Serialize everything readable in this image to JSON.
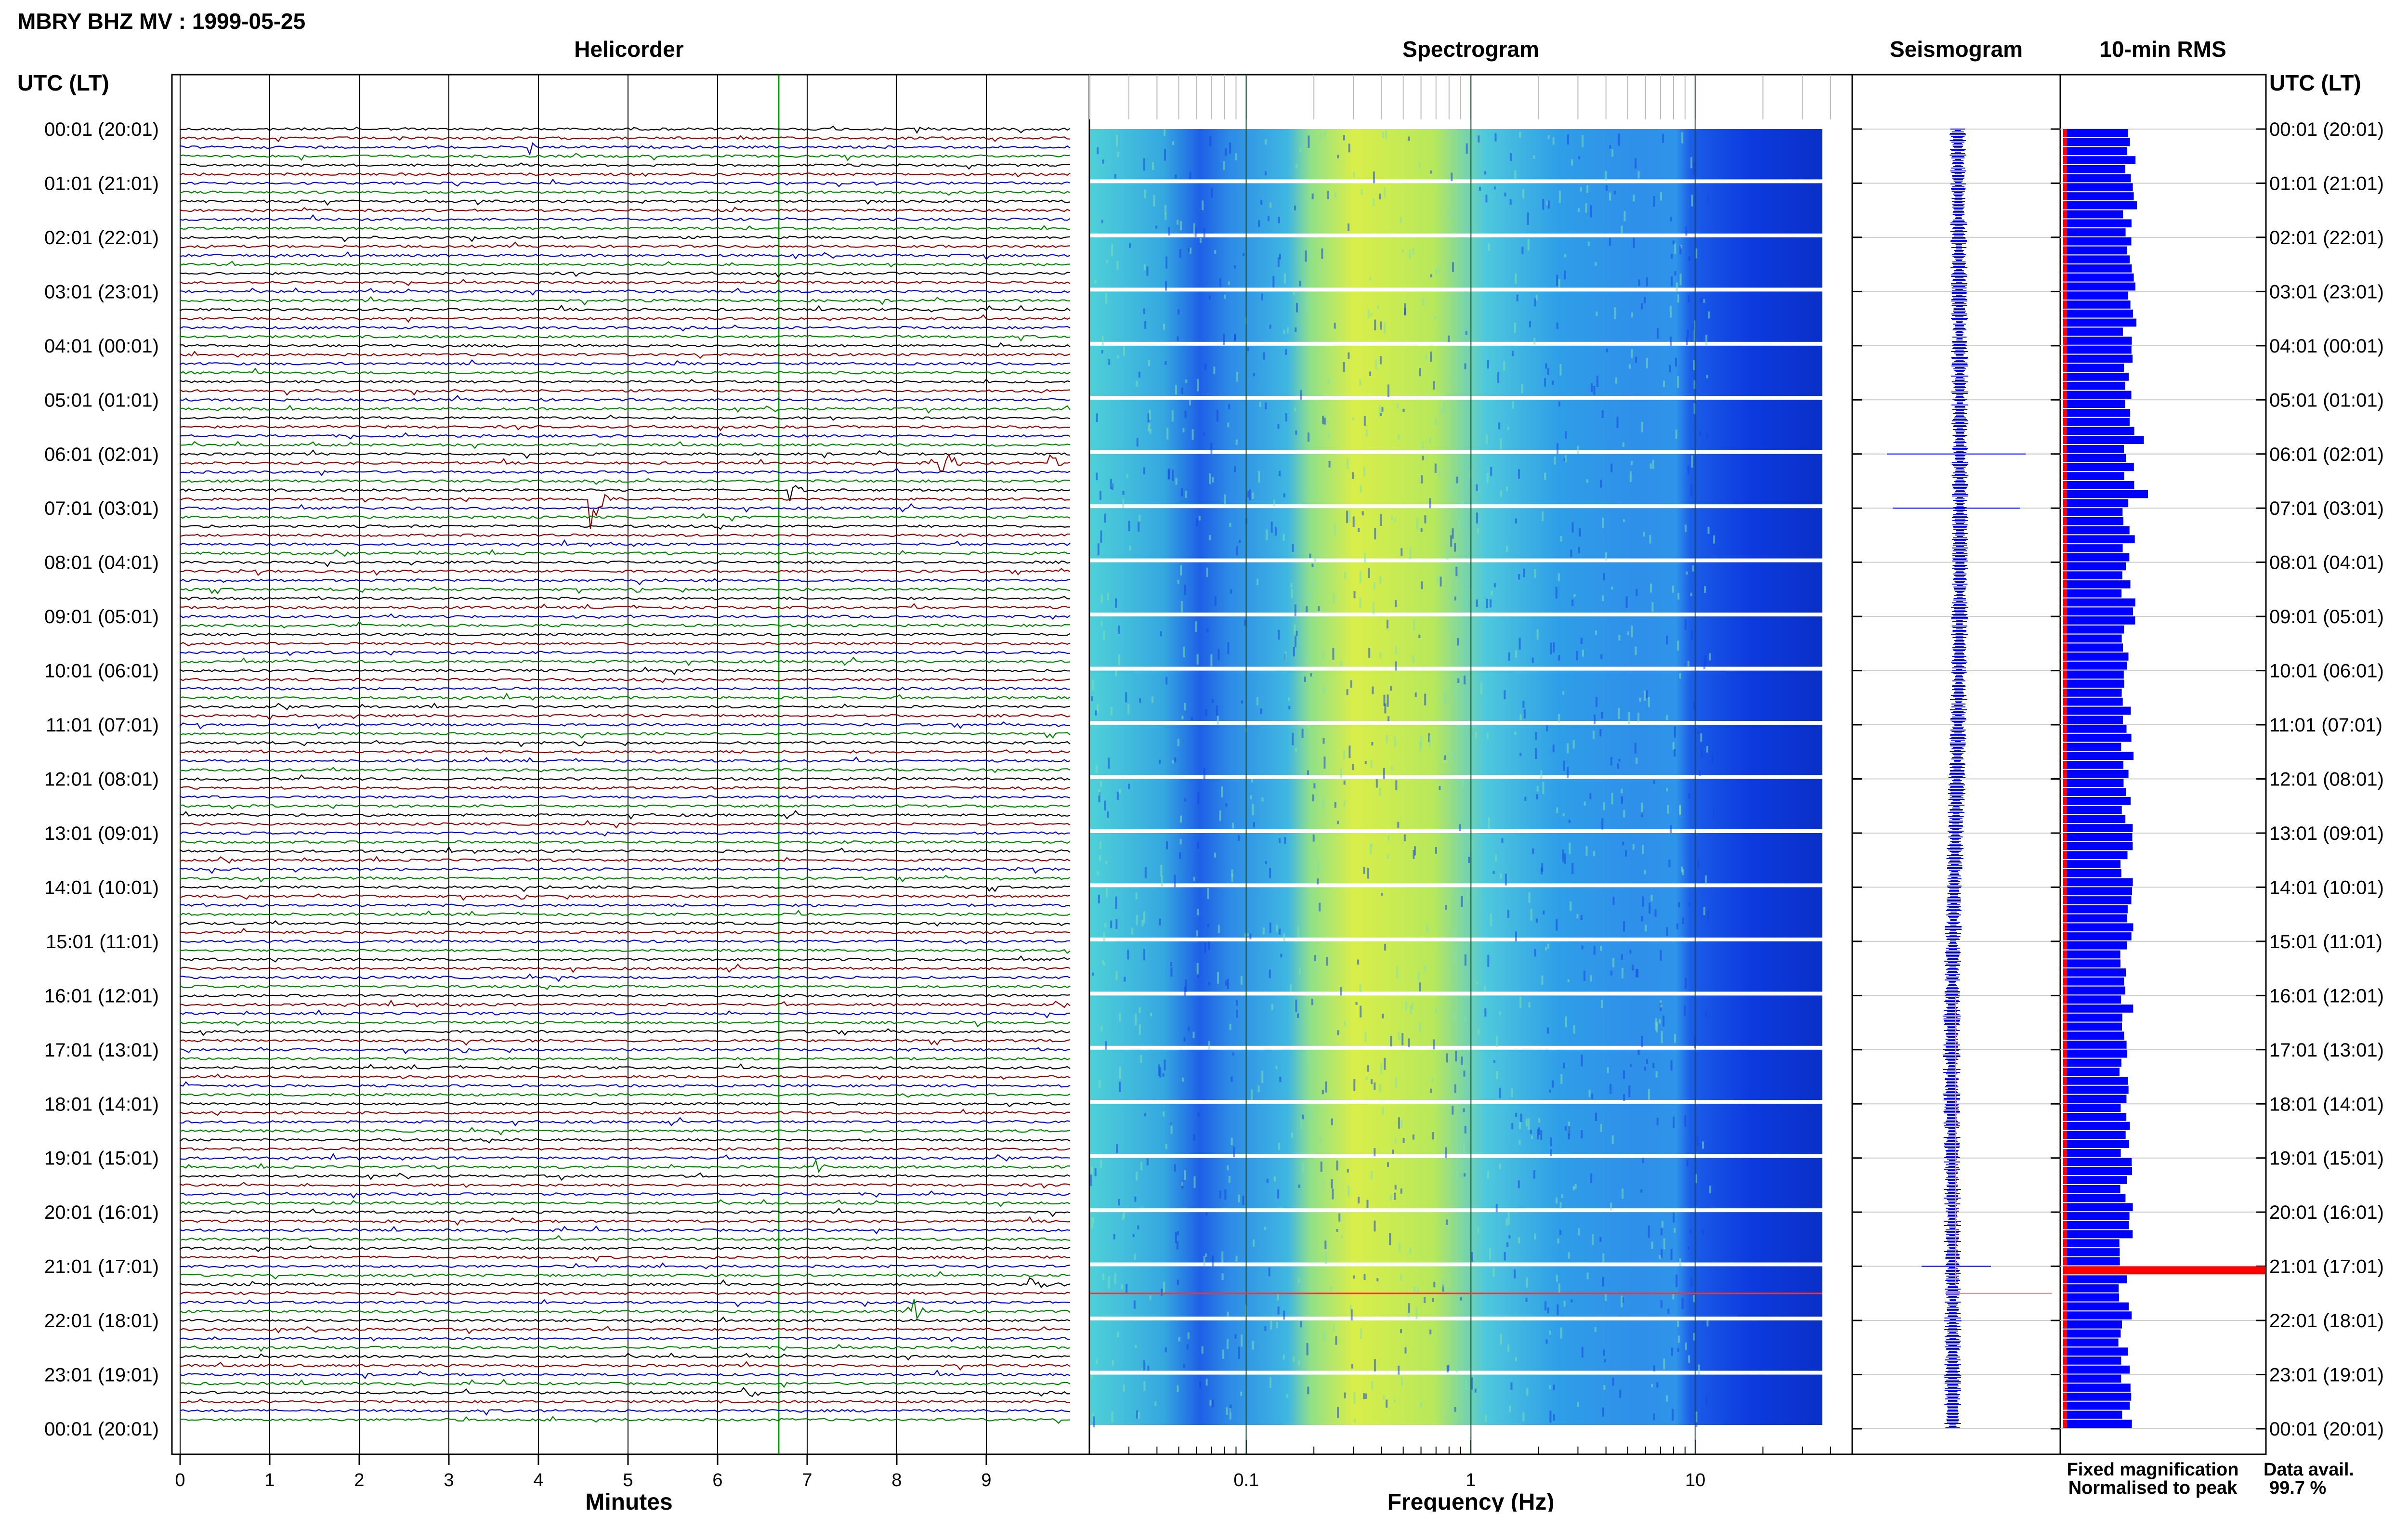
{
  "header": {
    "title": "MBRY BHZ MV : 1999-05-25",
    "left_axis_label": "UTC (LT)",
    "right_axis_label": "UTC (LT)"
  },
  "panels": {
    "helicorder": "Helicorder",
    "spectrogram": "Spectrogram",
    "seismogram": "Seismogram",
    "rms": "10-min RMS"
  },
  "time_labels": [
    "00:01 (20:01)",
    "01:01 (21:01)",
    "02:01 (22:01)",
    "03:01 (23:01)",
    "04:01 (00:01)",
    "05:01 (01:01)",
    "06:01 (02:01)",
    "07:01 (03:01)",
    "08:01 (04:01)",
    "09:01 (05:01)",
    "10:01 (06:01)",
    "11:01 (07:01)",
    "12:01 (08:01)",
    "13:01 (09:01)",
    "14:01 (10:01)",
    "15:01 (11:01)",
    "16:01 (12:01)",
    "17:01 (13:01)",
    "18:01 (14:01)",
    "19:01 (15:01)",
    "20:01 (16:01)",
    "21:01 (17:01)",
    "22:01 (18:01)",
    "23:01 (19:01)",
    "00:01 (20:01)"
  ],
  "legend": {
    "fixed": "Fixed magnification",
    "normalised": "Normalised to peak",
    "data_avail_label": "Data avail.",
    "data_avail_value": "99.7 %"
  },
  "colors": {
    "trace_black": "#000000",
    "trace_red": "#8b0000",
    "trace_blue": "#0000c8",
    "trace_green": "#008000",
    "rms_blue": "#0000ff",
    "rms_red": "#ff0000",
    "legend_blue": "#0000ff",
    "legend_red": "#ff0000"
  },
  "chart_data": [
    {
      "type": "line",
      "title": "Helicorder",
      "xlabel": "Minutes",
      "x_ticks": [
        "0",
        "1",
        "2",
        "3",
        "4",
        "5",
        "6",
        "7",
        "8",
        "9"
      ],
      "xlim": [
        0,
        10
      ],
      "rows": 144,
      "row_minutes": 10,
      "events": [
        {
          "utc": "00:01",
          "minute": 8.2,
          "amp": 1.5
        },
        {
          "utc": "00:21",
          "minute": 3.9,
          "amp": 1.4
        },
        {
          "utc": "06:11",
          "minute": 8.5,
          "amp": 4.0
        },
        {
          "utc": "06:11",
          "minute": 9.7,
          "amp": 2.0
        },
        {
          "utc": "06:51",
          "minute": 4.6,
          "amp": 7.0
        },
        {
          "utc": "06:41",
          "minute": 6.8,
          "amp": 3.0
        },
        {
          "utc": "19:11",
          "minute": 7.1,
          "amp": 1.6
        },
        {
          "utc": "21:21",
          "minute": 9.5,
          "amp": 3.0
        },
        {
          "utc": "21:51",
          "minute": 8.2,
          "amp": 2.5
        },
        {
          "utc": "23:21",
          "minute": 6.3,
          "amp": 2.5
        }
      ]
    },
    {
      "type": "heatmap",
      "title": "Spectrogram",
      "xlabel": "Frequency (Hz)",
      "x_scale": "log",
      "xlim": [
        0.02,
        50
      ],
      "x_ticks": [
        "0.1",
        "1",
        "10"
      ],
      "rows": 24,
      "energy_band_hz": [
        0.15,
        0.8
      ],
      "high_cutoff_hz": 12
    },
    {
      "type": "line",
      "title": "Seismogram",
      "rows": 24,
      "peaks": [
        {
          "utc": "06:01",
          "amp": 0.6
        },
        {
          "utc": "07:01",
          "amp": 0.55
        },
        {
          "utc": "21:01",
          "amp": 0.3
        }
      ]
    },
    {
      "type": "bar",
      "title": "10-min RMS",
      "rows": 144,
      "baseline": 0.35,
      "spikes": [
        {
          "row": 34,
          "value": 0.4
        },
        {
          "row": 40,
          "value": 0.42
        },
        {
          "row": 126,
          "value": 1.0
        }
      ]
    }
  ]
}
